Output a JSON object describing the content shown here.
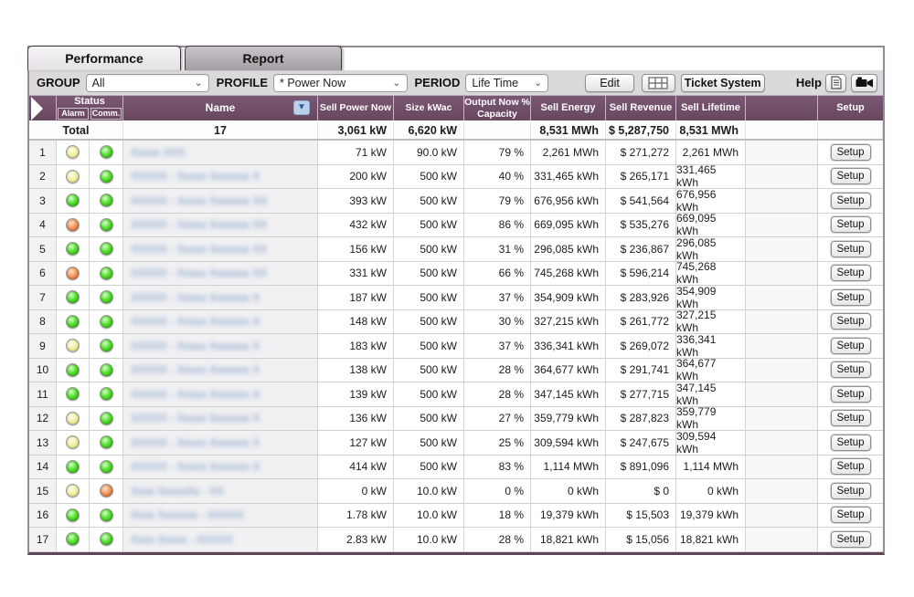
{
  "tabs": [
    {
      "label": "Performance",
      "active": true
    },
    {
      "label": "Report",
      "active": false
    }
  ],
  "toolbar": {
    "group_label": "GROUP",
    "group_value": "All",
    "profile_label": "PROFILE",
    "profile_value": "* Power Now",
    "period_label": "PERIOD",
    "period_value": "Life Time",
    "edit_button": "Edit",
    "ticket_button": "Ticket System",
    "help_label": "Help",
    "icons": [
      "table-grid-icon",
      "document-icon",
      "video-camera-icon"
    ]
  },
  "colors": {
    "header_purple": "#6b4a66",
    "status_green": "#55e22e",
    "status_yellow": "#f0ee9e",
    "status_orange": "#ef8d51",
    "sort_button_blue": "#b9d2ea"
  },
  "table": {
    "headers": {
      "status": "Status",
      "alarm": "Alarm",
      "comm": "Comm.",
      "name": "Name",
      "sell_power": "Sell Power Now",
      "size": "Size kWac",
      "output": "Output Now % Capacity",
      "sell_energy": "Sell Energy",
      "sell_revenue": "Sell Revenue",
      "sell_lifetime": "Sell Lifetime",
      "setup": "Setup"
    },
    "setup_label": "Setup",
    "total": {
      "label": "Total",
      "count": "17",
      "power": "3,061 kW",
      "size": "6,620 kW",
      "output": "",
      "energy": "8,531 MWh",
      "revenue": "$ 5,287,750",
      "lifetime": "8,531 MWh"
    },
    "rows": [
      {
        "num": "1",
        "alarm": "yellow",
        "comm": "green",
        "name_blurred": "Xxxxx XXX",
        "power": "71 kW",
        "size": "90.0 kW",
        "output": "79 %",
        "energy": "2,261 MWh",
        "revenue": "$ 271,272",
        "lifetime": "2,261 MWh"
      },
      {
        "num": "2",
        "alarm": "yellow",
        "comm": "green",
        "name_blurred": "XXXXX - Xxxxx Xxxxxxx X",
        "power": "200 kW",
        "size": "500 kW",
        "output": "40 %",
        "energy": "331,465 kWh",
        "revenue": "$ 265,171",
        "lifetime": "331,465 kWh"
      },
      {
        "num": "3",
        "alarm": "green",
        "comm": "green",
        "name_blurred": "XXXXX - Xxxxx Xxxxxxx XX",
        "power": "393 kW",
        "size": "500 kW",
        "output": "79 %",
        "energy": "676,956 kWh",
        "revenue": "$ 541,564",
        "lifetime": "676,956 kWh"
      },
      {
        "num": "4",
        "alarm": "orange",
        "comm": "green",
        "name_blurred": "XXXXX - Xxxxx Xxxxxxx XX",
        "power": "432 kW",
        "size": "500 kW",
        "output": "86 %",
        "energy": "669,095 kWh",
        "revenue": "$ 535,276",
        "lifetime": "669,095 kWh"
      },
      {
        "num": "5",
        "alarm": "green",
        "comm": "green",
        "name_blurred": "XXXXX - Xxxxx Xxxxxxx XX",
        "power": "156 kW",
        "size": "500 kW",
        "output": "31 %",
        "energy": "296,085 kWh",
        "revenue": "$ 236,867",
        "lifetime": "296,085 kWh"
      },
      {
        "num": "6",
        "alarm": "orange",
        "comm": "green",
        "name_blurred": "XXXXX - Xxxxx Xxxxxxx XX",
        "power": "331 kW",
        "size": "500 kW",
        "output": "66 %",
        "energy": "745,268 kWh",
        "revenue": "$ 596,214",
        "lifetime": "745,268 kWh"
      },
      {
        "num": "7",
        "alarm": "green",
        "comm": "green",
        "name_blurred": "XXXXX - Xxxxx Xxxxxxx X",
        "power": "187 kW",
        "size": "500 kW",
        "output": "37 %",
        "energy": "354,909 kWh",
        "revenue": "$ 283,926",
        "lifetime": "354,909 kWh"
      },
      {
        "num": "8",
        "alarm": "green",
        "comm": "green",
        "name_blurred": "XXXXX - Xxxxx Xxxxxxx X",
        "power": "148 kW",
        "size": "500 kW",
        "output": "30 %",
        "energy": "327,215 kWh",
        "revenue": "$ 261,772",
        "lifetime": "327,215 kWh"
      },
      {
        "num": "9",
        "alarm": "yellow",
        "comm": "green",
        "name_blurred": "XXXXX - Xxxxx Xxxxxxx X",
        "power": "183 kW",
        "size": "500 kW",
        "output": "37 %",
        "energy": "336,341 kWh",
        "revenue": "$ 269,072",
        "lifetime": "336,341 kWh"
      },
      {
        "num": "10",
        "alarm": "green",
        "comm": "green",
        "name_blurred": "XXXXX - Xxxxx Xxxxxxx X",
        "power": "138 kW",
        "size": "500 kW",
        "output": "28 %",
        "energy": "364,677 kWh",
        "revenue": "$ 291,741",
        "lifetime": "364,677 kWh"
      },
      {
        "num": "11",
        "alarm": "green",
        "comm": "green",
        "name_blurred": "XXXXX - Xxxxx Xxxxxxx X",
        "power": "139 kW",
        "size": "500 kW",
        "output": "28 %",
        "energy": "347,145 kWh",
        "revenue": "$ 277,715",
        "lifetime": "347,145 kWh"
      },
      {
        "num": "12",
        "alarm": "yellow",
        "comm": "green",
        "name_blurred": "XXXXX - Xxxxx Xxxxxxx X",
        "power": "136 kW",
        "size": "500 kW",
        "output": "27 %",
        "energy": "359,779 kWh",
        "revenue": "$ 287,823",
        "lifetime": "359,779 kWh"
      },
      {
        "num": "13",
        "alarm": "yellow",
        "comm": "green",
        "name_blurred": "XXXXX - Xxxxx Xxxxxxx X",
        "power": "127 kW",
        "size": "500 kW",
        "output": "25 %",
        "energy": "309,594 kWh",
        "revenue": "$ 247,675",
        "lifetime": "309,594 kWh"
      },
      {
        "num": "14",
        "alarm": "green",
        "comm": "green",
        "name_blurred": "XXXXX - Xxxxx Xxxxxxx X",
        "power": "414 kW",
        "size": "500 kW",
        "output": "83 %",
        "energy": "1,114 MWh",
        "revenue": "$ 891,096",
        "lifetime": "1,114 MWh"
      },
      {
        "num": "15",
        "alarm": "yellow",
        "comm": "orange",
        "name_blurred": "Xxxx XxxxxXx - XX",
        "power": "0 kW",
        "size": "10.0 kW",
        "output": "0 %",
        "energy": "0 kWh",
        "revenue": "$ 0",
        "lifetime": "0 kWh"
      },
      {
        "num": "16",
        "alarm": "green",
        "comm": "green",
        "name_blurred": "Xxxx Xxxxxxx - XXXXX",
        "power": "1.78 kW",
        "size": "10.0 kW",
        "output": "18 %",
        "energy": "19,379 kWh",
        "revenue": "$ 15,503",
        "lifetime": "19,379 kWh"
      },
      {
        "num": "17",
        "alarm": "green",
        "comm": "green",
        "name_blurred": "Xxxx Xxxxx - XXXXX",
        "power": "2.83 kW",
        "size": "10.0 kW",
        "output": "28 %",
        "energy": "18,821 kWh",
        "revenue": "$ 15,056",
        "lifetime": "18,821 kWh"
      }
    ]
  }
}
